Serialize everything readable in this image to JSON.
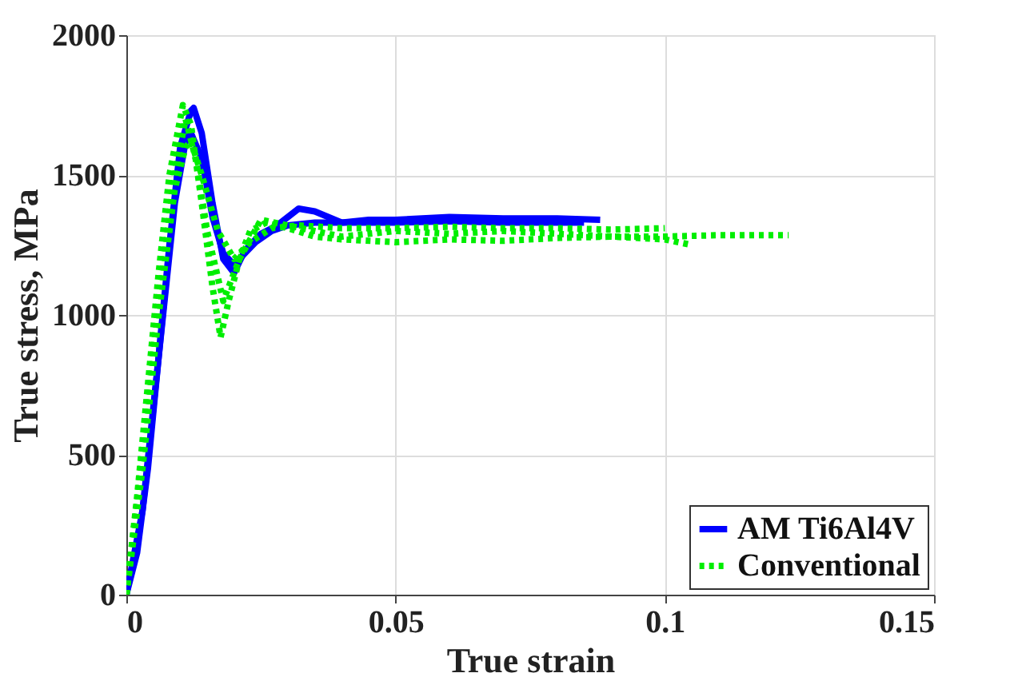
{
  "chart_data": {
    "type": "line",
    "xlabel": "True strain",
    "ylabel": "True stress, MPa",
    "xlim": [
      0,
      0.15
    ],
    "xticks": [
      0,
      0.05,
      0.1,
      0.15
    ],
    "ylim": [
      0,
      2000
    ],
    "yticks": [
      0,
      500,
      1000,
      1500,
      2000
    ],
    "grid": true,
    "legend": "bottom right",
    "series": [
      {
        "name": "AM Ti6Al4V",
        "color": "#0000ff",
        "line_style": "solid",
        "x": [
          0,
          0.002,
          0.004,
          0.006,
          0.008,
          0.01,
          0.012,
          0.0125,
          0.014,
          0.016,
          0.018,
          0.02,
          0.022,
          0.025,
          0.028,
          0.032,
          0.035,
          0.04,
          0.045,
          0.05,
          0.06,
          0.07,
          0.08,
          0.088
        ],
        "values": [
          0,
          150,
          450,
          850,
          1250,
          1600,
          1730,
          1740,
          1650,
          1400,
          1200,
          1150,
          1230,
          1290,
          1320,
          1380,
          1370,
          1330,
          1340,
          1340,
          1350,
          1345,
          1345,
          1340
        ]
      },
      {
        "color": "#0000ff",
        "line_style": "solid",
        "x": [
          0,
          0.003,
          0.006,
          0.009,
          0.011,
          0.012,
          0.014,
          0.016,
          0.018,
          0.02,
          0.022,
          0.024,
          0.027,
          0.03,
          0.035,
          0.04,
          0.05,
          0.06,
          0.07,
          0.085
        ],
        "values": [
          0,
          300,
          850,
          1400,
          1620,
          1650,
          1560,
          1350,
          1220,
          1180,
          1220,
          1260,
          1300,
          1320,
          1330,
          1330,
          1330,
          1335,
          1330,
          1330
        ]
      },
      {
        "name": "Conventional",
        "color": "#00ee00",
        "line_style": "dotted",
        "x": [
          0,
          0.002,
          0.004,
          0.006,
          0.008,
          0.0105,
          0.012,
          0.014,
          0.016,
          0.0175,
          0.019,
          0.021,
          0.023,
          0.026,
          0.03,
          0.035,
          0.04,
          0.05,
          0.06,
          0.07,
          0.08,
          0.09,
          0.1,
          0.11,
          0.123
        ],
        "values": [
          0,
          350,
          750,
          1150,
          1500,
          1750,
          1680,
          1400,
          1100,
          920,
          1050,
          1200,
          1300,
          1330,
          1310,
          1280,
          1270,
          1260,
          1270,
          1265,
          1275,
          1280,
          1280,
          1285,
          1285
        ]
      },
      {
        "color": "#00ee00",
        "line_style": "dotted",
        "x": [
          0,
          0.003,
          0.006,
          0.009,
          0.011,
          0.013,
          0.015,
          0.018,
          0.021,
          0.025,
          0.03,
          0.035,
          0.04,
          0.05,
          0.06,
          0.07,
          0.08,
          0.09,
          0.1,
          0.105
        ],
        "values": [
          0,
          500,
          1050,
          1500,
          1700,
          1550,
          1300,
          1050,
          1200,
          1340,
          1320,
          1300,
          1280,
          1300,
          1290,
          1300,
          1290,
          1280,
          1270,
          1250
        ]
      },
      {
        "color": "#00ee00",
        "line_style": "dotted",
        "x": [
          0,
          0.003,
          0.006,
          0.009,
          0.011,
          0.012,
          0.014,
          0.017,
          0.02,
          0.023,
          0.027,
          0.032,
          0.04,
          0.05,
          0.06,
          0.07,
          0.08,
          0.09,
          0.1
        ],
        "values": [
          0,
          450,
          1000,
          1450,
          1600,
          1620,
          1500,
          1300,
          1200,
          1260,
          1310,
          1320,
          1310,
          1310,
          1315,
          1310,
          1310,
          1305,
          1310
        ]
      }
    ]
  }
}
